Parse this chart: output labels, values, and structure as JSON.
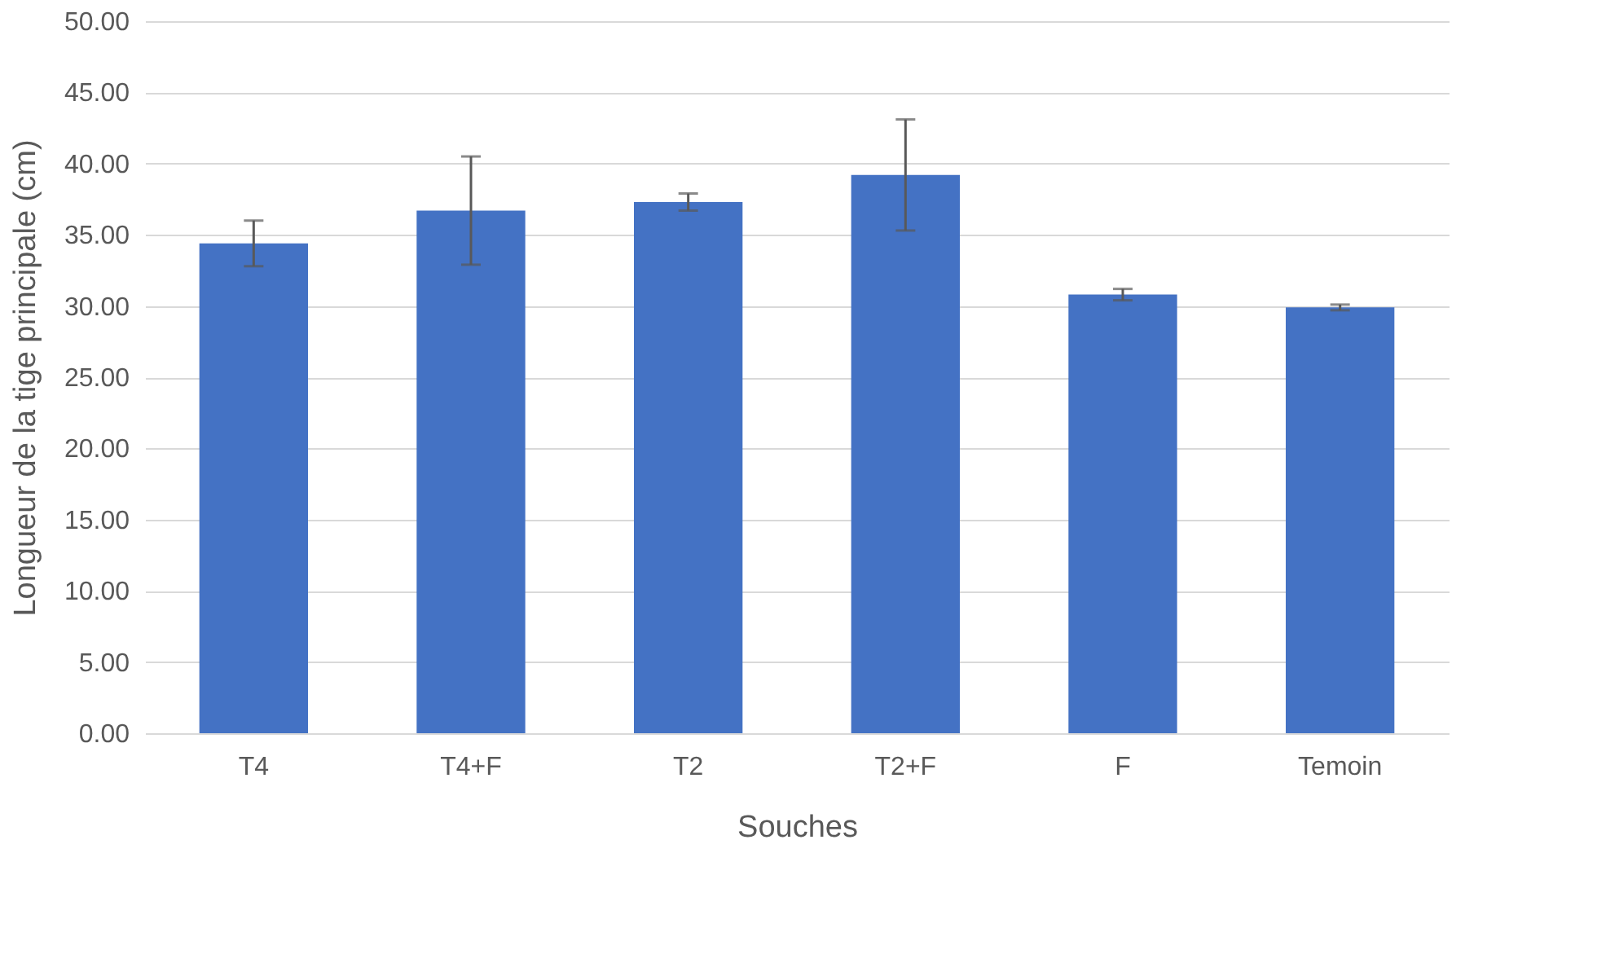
{
  "chart_data": {
    "type": "bar",
    "xlabel": "Souches",
    "ylabel": "Longueur de la tige principale (cm)",
    "categories": [
      "T4",
      "T4+F",
      "T2",
      "T2+F",
      "F",
      "Temoin"
    ],
    "values": [
      34.4,
      36.7,
      37.3,
      39.2,
      30.8,
      29.9
    ],
    "errors": [
      1.6,
      3.8,
      0.6,
      3.9,
      0.4,
      0.2
    ],
    "color": "#4472c4",
    "ylim": [
      0,
      50
    ],
    "yticks": [
      {
        "value": 0,
        "label": "0.00"
      },
      {
        "value": 5,
        "label": "5.00"
      },
      {
        "value": 10,
        "label": "10.00"
      },
      {
        "value": 15,
        "label": "15.00"
      },
      {
        "value": 20,
        "label": "20.00"
      },
      {
        "value": 25,
        "label": "25.00"
      },
      {
        "value": 30,
        "label": "30.00"
      },
      {
        "value": 35,
        "label": "35.00"
      },
      {
        "value": 40,
        "label": "40.00"
      },
      {
        "value": 45,
        "label": "45.00"
      },
      {
        "value": 50,
        "label": "50.00"
      }
    ],
    "grid": "y"
  }
}
